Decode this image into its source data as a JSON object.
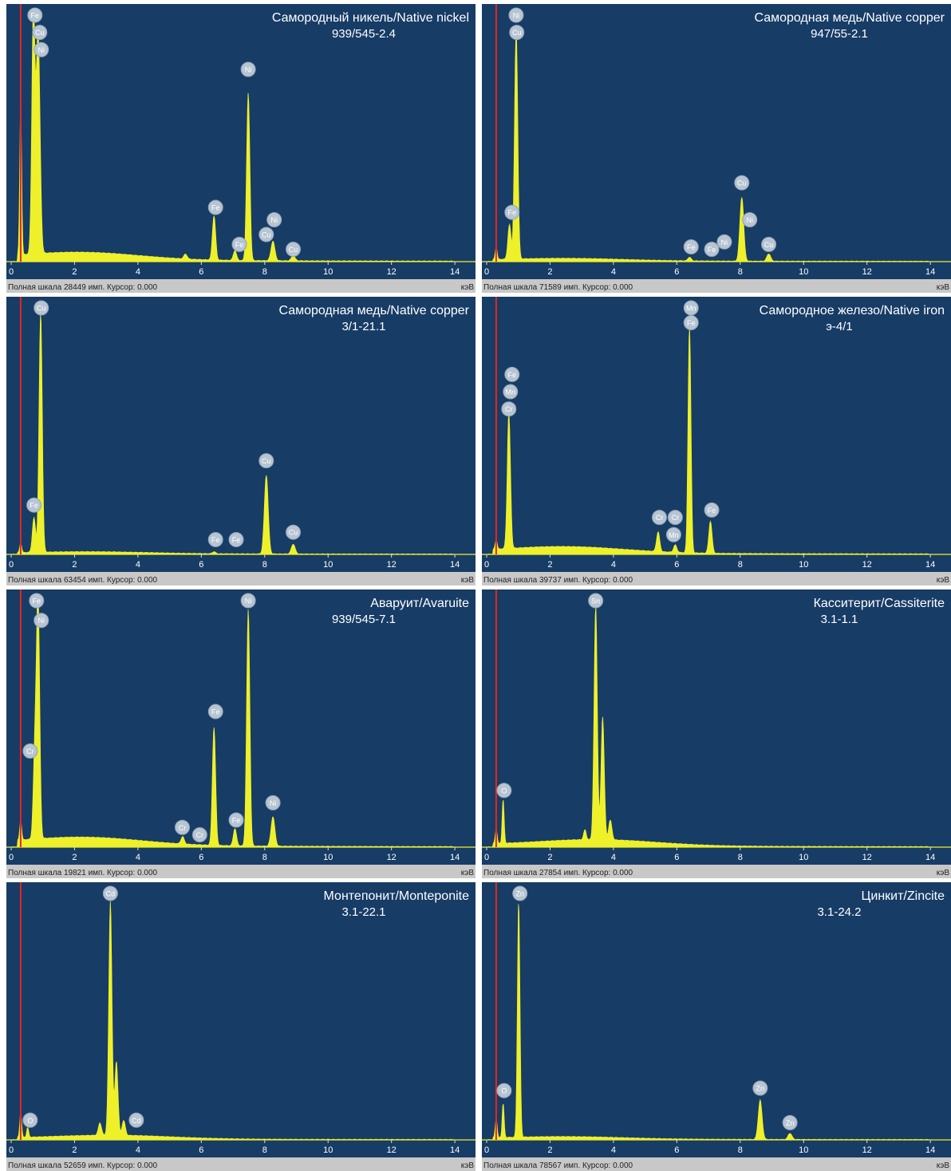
{
  "colors": {
    "plot_bg": "#173c66",
    "spectrum": "#eef02a",
    "marker": "#e8241f",
    "footer_bg": "#c8c8c8",
    "footer_text": "#222222",
    "axis_text": "#ffffff",
    "label_circle": "#b7c4d2",
    "title_text": "#ffffff"
  },
  "axis": {
    "x_min": 0,
    "x_max": 14.5,
    "ticks": [
      0,
      2,
      4,
      6,
      8,
      10,
      12,
      14
    ],
    "unit": "кэВ",
    "marker_kev": 0.3
  },
  "footer": {
    "prefix": "Полная шкала",
    "suffix": "имп. Курсор: 0.000"
  },
  "chart_data": [
    {
      "type": "line",
      "title": "Самородный никель/Native nickel",
      "subtitle": "939/545-2.4",
      "full_scale": "28449",
      "ylim": [
        0,
        100
      ],
      "peaks": [
        {
          "x": 0.7,
          "y": 97,
          "w": 0.05
        },
        {
          "x": 0.85,
          "y": 90,
          "w": 0.06
        },
        {
          "x": 0.3,
          "y": 62,
          "w": 0.03
        },
        {
          "x": 6.4,
          "y": 18,
          "w": 0.05
        },
        {
          "x": 7.06,
          "y": 4,
          "w": 0.05
        },
        {
          "x": 7.48,
          "y": 68,
          "w": 0.05
        },
        {
          "x": 8.26,
          "y": 8,
          "w": 0.06
        },
        {
          "x": 8.9,
          "y": 2,
          "w": 0.06
        },
        {
          "x": 5.5,
          "y": 2,
          "w": 0.05
        }
      ],
      "continuum": {
        "peak_x": 2.2,
        "height": 3
      },
      "labels": [
        {
          "el": "Fe",
          "x": 0.75,
          "y": 100
        },
        {
          "el": "Cu",
          "x": 0.9,
          "y": 93
        },
        {
          "el": "Ni",
          "x": 0.95,
          "y": 86
        },
        {
          "el": "Ni",
          "x": 7.48,
          "y": 78
        },
        {
          "el": "Fe",
          "x": 6.45,
          "y": 22
        },
        {
          "el": "Fe",
          "x": 7.2,
          "y": 7
        },
        {
          "el": "Ni",
          "x": 8.3,
          "y": 17
        },
        {
          "el": "Cu",
          "x": 8.05,
          "y": 11
        },
        {
          "el": "Cu",
          "x": 8.9,
          "y": 5
        }
      ]
    },
    {
      "type": "line",
      "title": "Самородная медь/Native copper",
      "subtitle": "947/55-2.1",
      "full_scale": "71589",
      "ylim": [
        0,
        100
      ],
      "peaks": [
        {
          "x": 0.93,
          "y": 93,
          "w": 0.05
        },
        {
          "x": 0.72,
          "y": 14,
          "w": 0.05
        },
        {
          "x": 0.3,
          "y": 5,
          "w": 0.03
        },
        {
          "x": 8.05,
          "y": 26,
          "w": 0.06
        },
        {
          "x": 8.9,
          "y": 3,
          "w": 0.06
        },
        {
          "x": 6.4,
          "y": 1.5,
          "w": 0.05
        }
      ],
      "continuum": {
        "peak_x": 2.5,
        "height": 1
      },
      "labels": [
        {
          "el": "Ni",
          "x": 0.93,
          "y": 100
        },
        {
          "el": "Cu",
          "x": 0.95,
          "y": 93
        },
        {
          "el": "Fe",
          "x": 0.8,
          "y": 20
        },
        {
          "el": "Cu",
          "x": 8.05,
          "y": 32
        },
        {
          "el": "Ni",
          "x": 8.3,
          "y": 17
        },
        {
          "el": "Fe",
          "x": 6.45,
          "y": 6
        },
        {
          "el": "Fe",
          "x": 7.1,
          "y": 5
        },
        {
          "el": "Ni",
          "x": 7.5,
          "y": 8
        },
        {
          "el": "Cu",
          "x": 8.9,
          "y": 7
        }
      ]
    },
    {
      "type": "line",
      "title": "Самородная медь/Native copper",
      "subtitle": "3/1-21.1",
      "full_scale": "63454",
      "ylim": [
        0,
        100
      ],
      "peaks": [
        {
          "x": 0.93,
          "y": 97,
          "w": 0.05
        },
        {
          "x": 0.72,
          "y": 14,
          "w": 0.05
        },
        {
          "x": 0.3,
          "y": 4,
          "w": 0.03
        },
        {
          "x": 8.05,
          "y": 32,
          "w": 0.06
        },
        {
          "x": 8.9,
          "y": 4,
          "w": 0.06
        },
        {
          "x": 6.4,
          "y": 0.8,
          "w": 0.05
        }
      ],
      "continuum": {
        "peak_x": 2.5,
        "height": 0.8
      },
      "labels": [
        {
          "el": "Cu",
          "x": 0.95,
          "y": 100
        },
        {
          "el": "Fe",
          "x": 0.72,
          "y": 20
        },
        {
          "el": "Cu",
          "x": 8.05,
          "y": 38
        },
        {
          "el": "Fe",
          "x": 6.45,
          "y": 6
        },
        {
          "el": "Fe",
          "x": 7.1,
          "y": 6
        },
        {
          "el": "Cu",
          "x": 8.9,
          "y": 9
        }
      ]
    },
    {
      "type": "line",
      "title": "Самородное железо/Native iron",
      "subtitle": "э-4/1",
      "full_scale": "39737",
      "ylim": [
        0,
        100
      ],
      "peaks": [
        {
          "x": 0.7,
          "y": 55,
          "w": 0.05
        },
        {
          "x": 0.3,
          "y": 4,
          "w": 0.03
        },
        {
          "x": 5.41,
          "y": 8,
          "w": 0.05
        },
        {
          "x": 5.95,
          "y": 3,
          "w": 0.05
        },
        {
          "x": 6.4,
          "y": 92,
          "w": 0.045
        },
        {
          "x": 7.06,
          "y": 13,
          "w": 0.05
        }
      ],
      "continuum": {
        "peak_x": 2.5,
        "height": 2.5
      },
      "labels": [
        {
          "el": "Mn",
          "x": 6.45,
          "y": 100
        },
        {
          "el": "Fe",
          "x": 6.45,
          "y": 94
        },
        {
          "el": "Fe",
          "x": 0.8,
          "y": 73
        },
        {
          "el": "Mn",
          "x": 0.75,
          "y": 66
        },
        {
          "el": "Cr",
          "x": 0.7,
          "y": 59
        },
        {
          "el": "Cr",
          "x": 5.45,
          "y": 15
        },
        {
          "el": "Cr",
          "x": 5.95,
          "y": 15
        },
        {
          "el": "Mn",
          "x": 5.9,
          "y": 8
        },
        {
          "el": "Fe",
          "x": 7.1,
          "y": 18
        }
      ]
    },
    {
      "type": "line",
      "title": "Аваруит/Avaruite",
      "subtitle": "939/545-7.1",
      "full_scale": "19821",
      "ylim": [
        0,
        100
      ],
      "peaks": [
        {
          "x": 0.75,
          "y": 36,
          "w": 0.05
        },
        {
          "x": 0.85,
          "y": 96,
          "w": 0.05
        },
        {
          "x": 0.3,
          "y": 8,
          "w": 0.03
        },
        {
          "x": 5.41,
          "y": 3,
          "w": 0.05
        },
        {
          "x": 6.4,
          "y": 48,
          "w": 0.05
        },
        {
          "x": 7.06,
          "y": 7,
          "w": 0.05
        },
        {
          "x": 7.48,
          "y": 96,
          "w": 0.05
        },
        {
          "x": 8.26,
          "y": 12,
          "w": 0.06
        }
      ],
      "continuum": {
        "peak_x": 2.3,
        "height": 3.2
      },
      "labels": [
        {
          "el": "Fe",
          "x": 0.8,
          "y": 100
        },
        {
          "el": "Ni",
          "x": 0.95,
          "y": 92
        },
        {
          "el": "Cr",
          "x": 0.6,
          "y": 39
        },
        {
          "el": "Ni",
          "x": 7.48,
          "y": 100
        },
        {
          "el": "Fe",
          "x": 6.45,
          "y": 55
        },
        {
          "el": "Cr",
          "x": 5.4,
          "y": 8
        },
        {
          "el": "Cr",
          "x": 5.95,
          "y": 5
        },
        {
          "el": "Fe",
          "x": 7.1,
          "y": 11
        },
        {
          "el": "Ni",
          "x": 8.26,
          "y": 18
        }
      ]
    },
    {
      "type": "line",
      "title": "Касситерит/Cassiterite",
      "subtitle": "3.1-1.1",
      "full_scale": "27854",
      "ylim": [
        0,
        100
      ],
      "peaks": [
        {
          "x": 3.44,
          "y": 95,
          "w": 0.05
        },
        {
          "x": 3.66,
          "y": 50,
          "w": 0.05
        },
        {
          "x": 3.9,
          "y": 8,
          "w": 0.05
        },
        {
          "x": 3.1,
          "y": 4,
          "w": 0.04
        },
        {
          "x": 0.52,
          "y": 18,
          "w": 0.03
        },
        {
          "x": 0.3,
          "y": 6,
          "w": 0.03
        }
      ],
      "continuum": {
        "peak_x": 3.5,
        "height": 2.5
      },
      "labels": [
        {
          "el": "Sn",
          "x": 3.44,
          "y": 100
        },
        {
          "el": "O",
          "x": 0.55,
          "y": 23
        }
      ]
    },
    {
      "type": "line",
      "title": "Монтепонит/Monteponite",
      "subtitle": "3.1-22.1",
      "full_scale": "52659",
      "ylim": [
        0,
        100
      ],
      "peaks": [
        {
          "x": 3.13,
          "y": 95,
          "w": 0.05
        },
        {
          "x": 3.32,
          "y": 30,
          "w": 0.05
        },
        {
          "x": 3.55,
          "y": 6,
          "w": 0.05
        },
        {
          "x": 2.8,
          "y": 5,
          "w": 0.05
        },
        {
          "x": 0.52,
          "y": 4,
          "w": 0.03
        },
        {
          "x": 0.3,
          "y": 10,
          "w": 0.03
        }
      ],
      "continuum": {
        "peak_x": 3.2,
        "height": 1.5
      },
      "labels": [
        {
          "el": "Cd",
          "x": 3.13,
          "y": 100
        },
        {
          "el": "O",
          "x": 0.6,
          "y": 8
        },
        {
          "el": "Cd",
          "x": 3.95,
          "y": 8
        }
      ]
    },
    {
      "type": "line",
      "title": "Цинкит/Zincite",
      "subtitle": "3.1-24.2",
      "full_scale": "78567",
      "ylim": [
        0,
        100
      ],
      "peaks": [
        {
          "x": 1.01,
          "y": 96,
          "w": 0.04
        },
        {
          "x": 0.52,
          "y": 14,
          "w": 0.03
        },
        {
          "x": 0.3,
          "y": 8,
          "w": 0.03
        },
        {
          "x": 8.63,
          "y": 16,
          "w": 0.06
        },
        {
          "x": 9.57,
          "y": 2.5,
          "w": 0.06
        }
      ],
      "continuum": {
        "peak_x": 2.5,
        "height": 1
      },
      "labels": [
        {
          "el": "Zn",
          "x": 1.05,
          "y": 100
        },
        {
          "el": "O",
          "x": 0.55,
          "y": 20
        },
        {
          "el": "Zn",
          "x": 8.63,
          "y": 21
        },
        {
          "el": "Zn",
          "x": 9.57,
          "y": 7
        }
      ]
    }
  ]
}
